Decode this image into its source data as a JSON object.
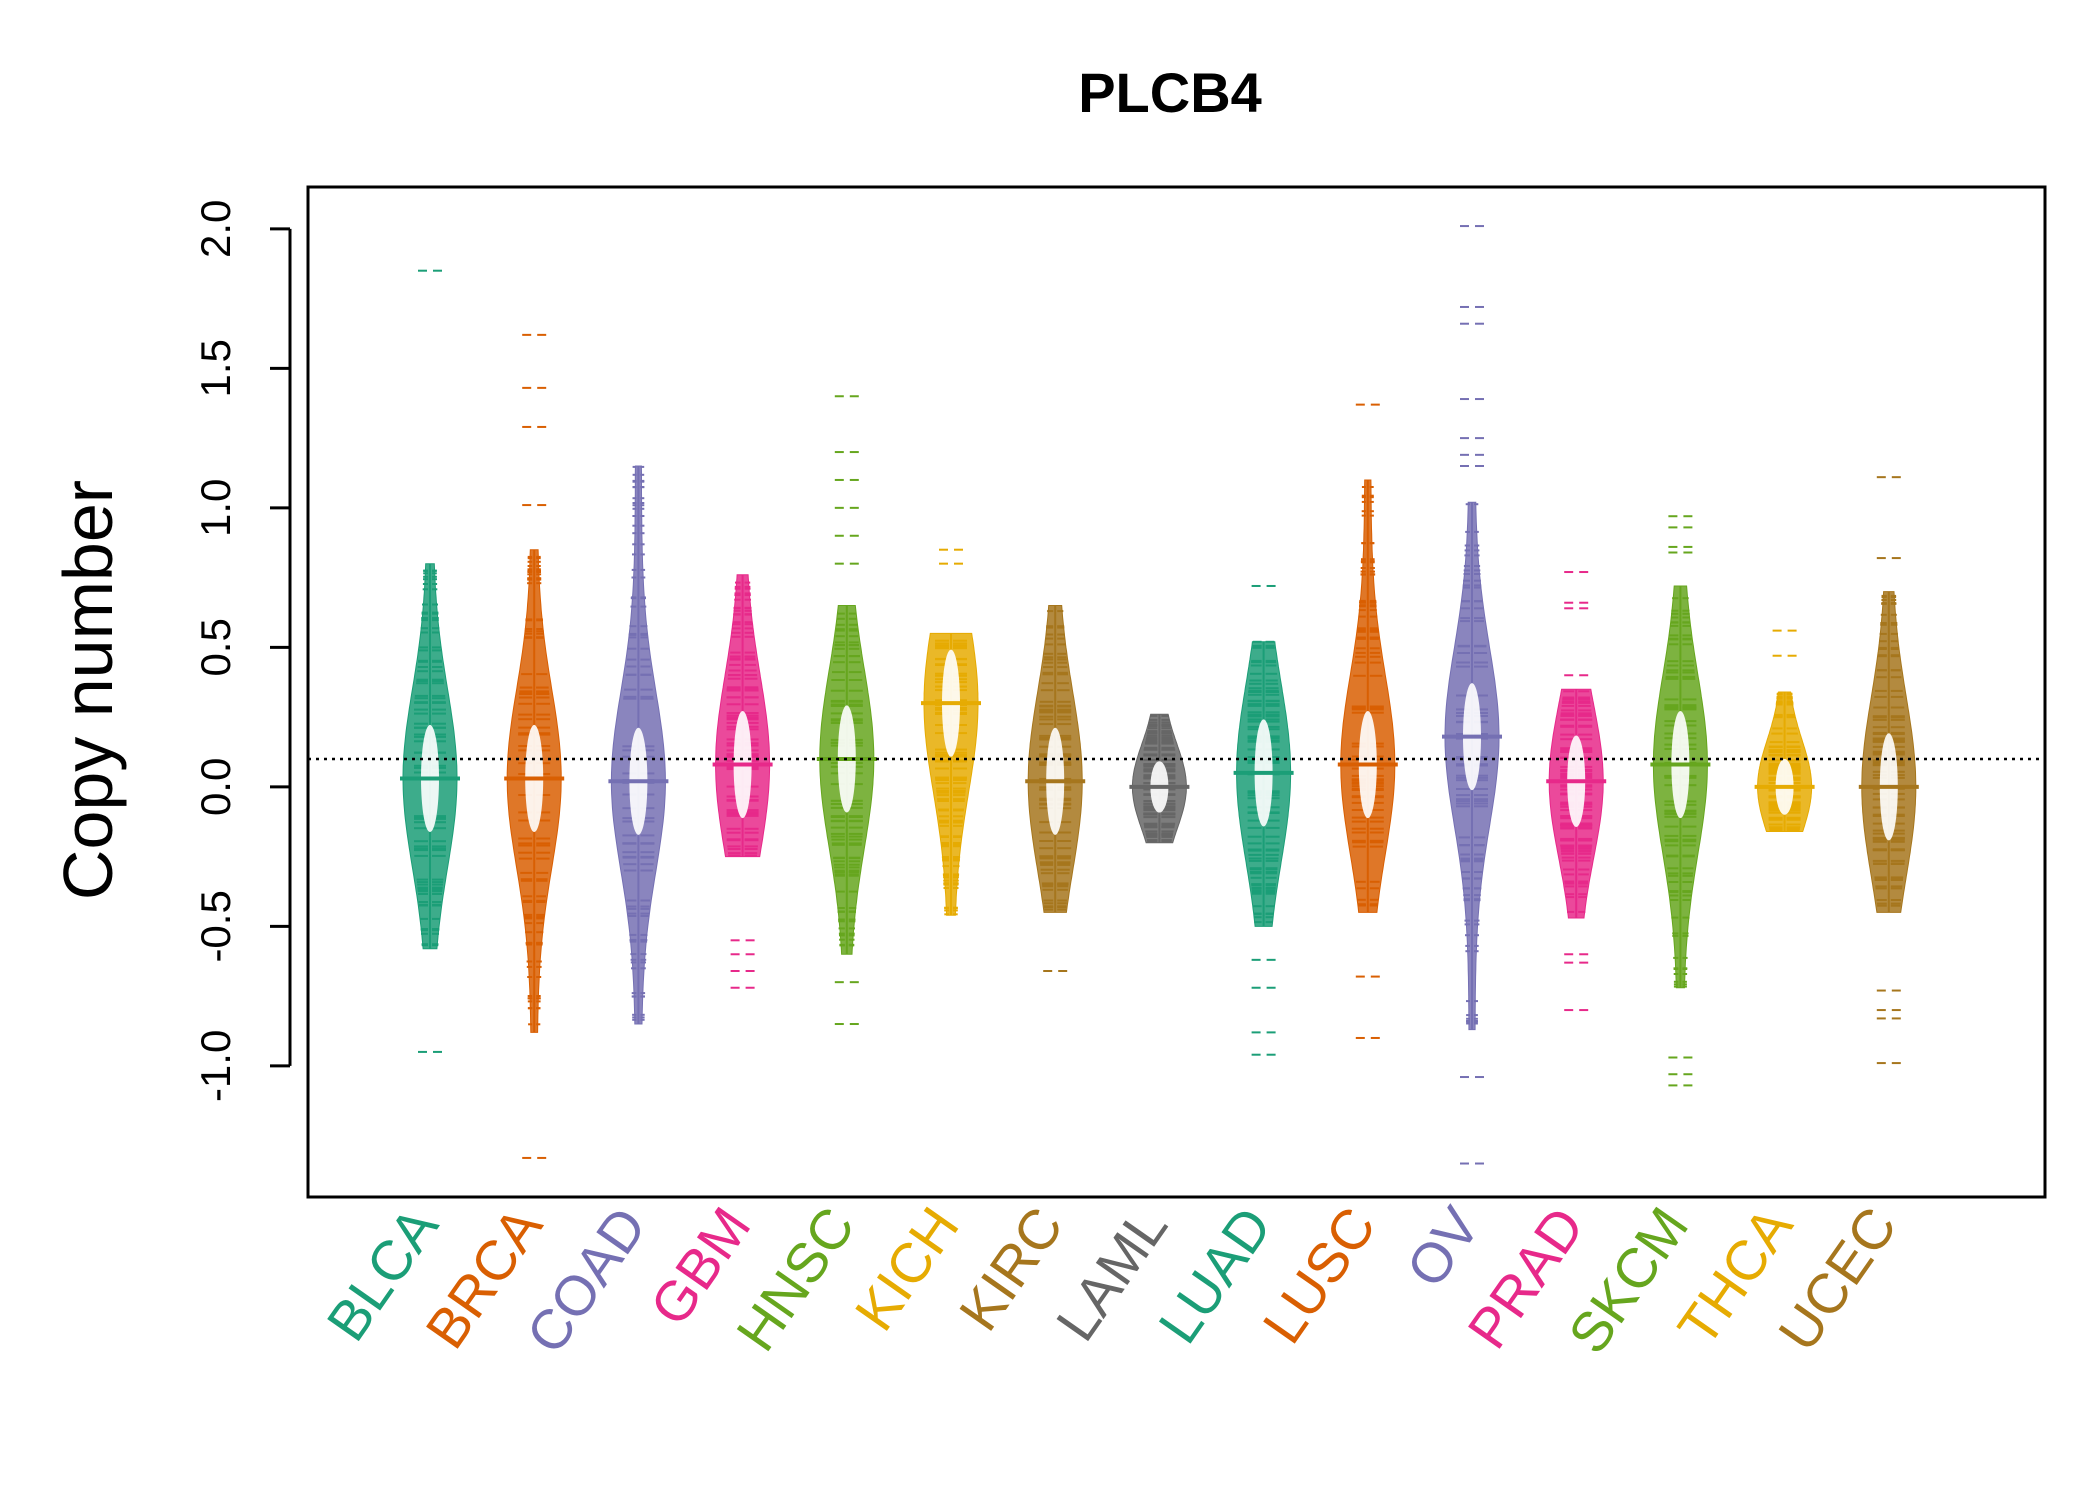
{
  "chart_data": {
    "type": "beanplot",
    "title": "PLCB4",
    "ylabel": "Copy number",
    "xlabel": "",
    "ylim": [
      -1.47,
      2.15
    ],
    "yticks": [
      -1.0,
      -0.5,
      0.0,
      0.5,
      1.0,
      1.5,
      2.0
    ],
    "ytick_labels": [
      "-1.0",
      "-0.5",
      "0.0",
      "0.5",
      "1.0",
      "1.5",
      "2.0"
    ],
    "reference_line": 0.1,
    "categories": [
      "BLCA",
      "BRCA",
      "COAD",
      "GBM",
      "HNSC",
      "KICH",
      "KIRC",
      "LAML",
      "LUAD",
      "LUSC",
      "OV",
      "PRAD",
      "SKCM",
      "THCA",
      "UCEC"
    ],
    "colors": [
      "#1B9E77",
      "#D95F02",
      "#7570B3",
      "#E7298A",
      "#66A61E",
      "#E6AB02",
      "#A6761D",
      "#666666",
      "#1B9E77",
      "#D95F02",
      "#7570B3",
      "#E7298A",
      "#66A61E",
      "#E6AB02",
      "#A6761D"
    ],
    "series": [
      {
        "name": "BLCA",
        "min": -0.58,
        "max": 0.8,
        "median": 0.03,
        "outliers": [
          1.85,
          -0.95
        ]
      },
      {
        "name": "BRCA",
        "min": -0.88,
        "max": 0.85,
        "median": 0.03,
        "outliers": [
          1.62,
          1.43,
          1.29,
          1.01,
          -1.33
        ]
      },
      {
        "name": "COAD",
        "min": -0.85,
        "max": 1.15,
        "median": 0.02,
        "outliers": []
      },
      {
        "name": "GBM",
        "min": -0.25,
        "max": 0.76,
        "median": 0.08,
        "outliers": [
          -0.55,
          -0.6,
          -0.66,
          -0.72
        ]
      },
      {
        "name": "HNSC",
        "min": -0.6,
        "max": 0.65,
        "median": 0.1,
        "outliers": [
          1.4,
          1.2,
          1.1,
          1.0,
          0.9,
          0.8,
          -0.7,
          -0.85
        ]
      },
      {
        "name": "KICH",
        "min": -0.46,
        "max": 0.55,
        "median": 0.3,
        "outliers": [
          0.85,
          0.8
        ]
      },
      {
        "name": "KIRC",
        "min": -0.45,
        "max": 0.65,
        "median": 0.02,
        "outliers": [
          -0.66
        ]
      },
      {
        "name": "LAML",
        "min": -0.2,
        "max": 0.26,
        "median": 0.0,
        "outliers": []
      },
      {
        "name": "LUAD",
        "min": -0.5,
        "max": 0.52,
        "median": 0.05,
        "outliers": [
          0.72,
          -0.62,
          -0.72,
          -0.88,
          -0.96
        ]
      },
      {
        "name": "LUSC",
        "min": -0.45,
        "max": 1.1,
        "median": 0.08,
        "outliers": [
          1.37,
          -0.68,
          -0.9
        ]
      },
      {
        "name": "OV",
        "min": -0.87,
        "max": 1.02,
        "median": 0.18,
        "outliers": [
          2.01,
          1.72,
          1.66,
          1.39,
          1.25,
          1.19,
          1.15,
          -1.04,
          -1.35
        ]
      },
      {
        "name": "PRAD",
        "min": -0.47,
        "max": 0.35,
        "median": 0.02,
        "outliers": [
          0.77,
          0.66,
          0.64,
          0.4,
          -0.6,
          -0.63,
          -0.8
        ]
      },
      {
        "name": "SKCM",
        "min": -0.72,
        "max": 0.72,
        "median": 0.08,
        "outliers": [
          0.97,
          0.93,
          0.86,
          0.84,
          -0.97,
          -1.03,
          -1.07
        ]
      },
      {
        "name": "THCA",
        "min": -0.16,
        "max": 0.34,
        "median": 0.0,
        "outliers": [
          0.56,
          0.47
        ]
      },
      {
        "name": "UCEC",
        "min": -0.45,
        "max": 0.7,
        "median": 0.0,
        "outliers": [
          1.11,
          0.82,
          -0.73,
          -0.8,
          -0.83,
          -0.99
        ]
      }
    ]
  }
}
